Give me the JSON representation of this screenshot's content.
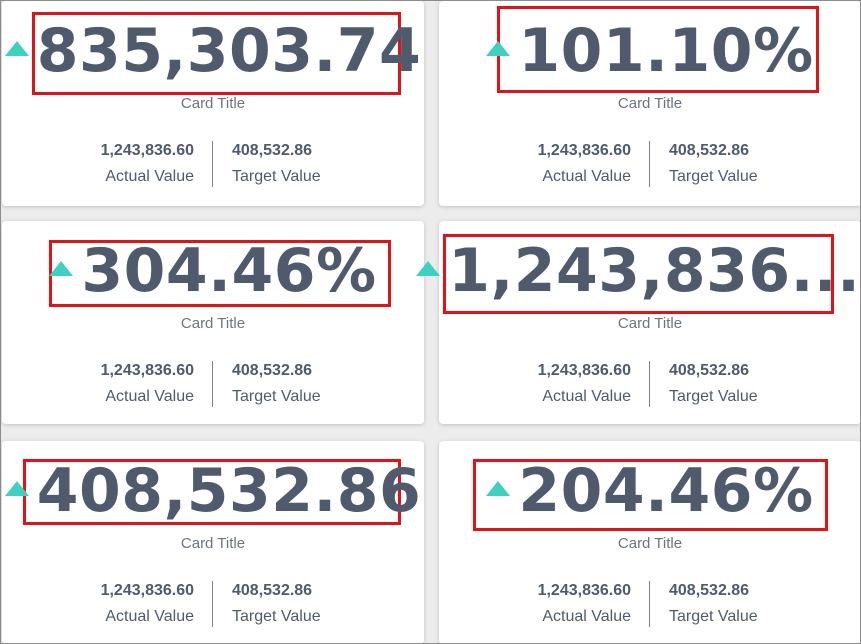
{
  "colors": {
    "trend_up": "#3ed1c0",
    "value_text": "#4f5b6d",
    "highlight_border": "#e01418"
  },
  "cards": [
    {
      "kpi_value": "835,303.74",
      "title": "Card Title",
      "actual_value": "1,243,836.60",
      "actual_label": "Actual Value",
      "target_value": "408,532.86",
      "target_label": "Target Value",
      "trend_icon": "triangle-up-icon"
    },
    {
      "kpi_value": "101.10%",
      "title": "Card Title",
      "actual_value": "1,243,836.60",
      "actual_label": "Actual Value",
      "target_value": "408,532.86",
      "target_label": "Target Value",
      "trend_icon": "triangle-up-icon"
    },
    {
      "kpi_value": "304.46%",
      "title": "Card Title",
      "actual_value": "1,243,836.60",
      "actual_label": "Actual Value",
      "target_value": "408,532.86",
      "target_label": "Target Value",
      "trend_icon": "triangle-up-icon"
    },
    {
      "kpi_value": "1,243,836....",
      "title": "Card Title",
      "actual_value": "1,243,836.60",
      "actual_label": "Actual Value",
      "target_value": "408,532.86",
      "target_label": "Target Value",
      "trend_icon": "triangle-up-icon"
    },
    {
      "kpi_value": "408,532.86",
      "title": "Card Title",
      "actual_value": "1,243,836.60",
      "actual_label": "Actual Value",
      "target_value": "408,532.86",
      "target_label": "Target Value",
      "trend_icon": "triangle-up-icon"
    },
    {
      "kpi_value": "204.46%",
      "title": "Card Title",
      "actual_value": "1,243,836.60",
      "actual_label": "Actual Value",
      "target_value": "408,532.86",
      "target_label": "Target Value",
      "trend_icon": "triangle-up-icon"
    }
  ]
}
